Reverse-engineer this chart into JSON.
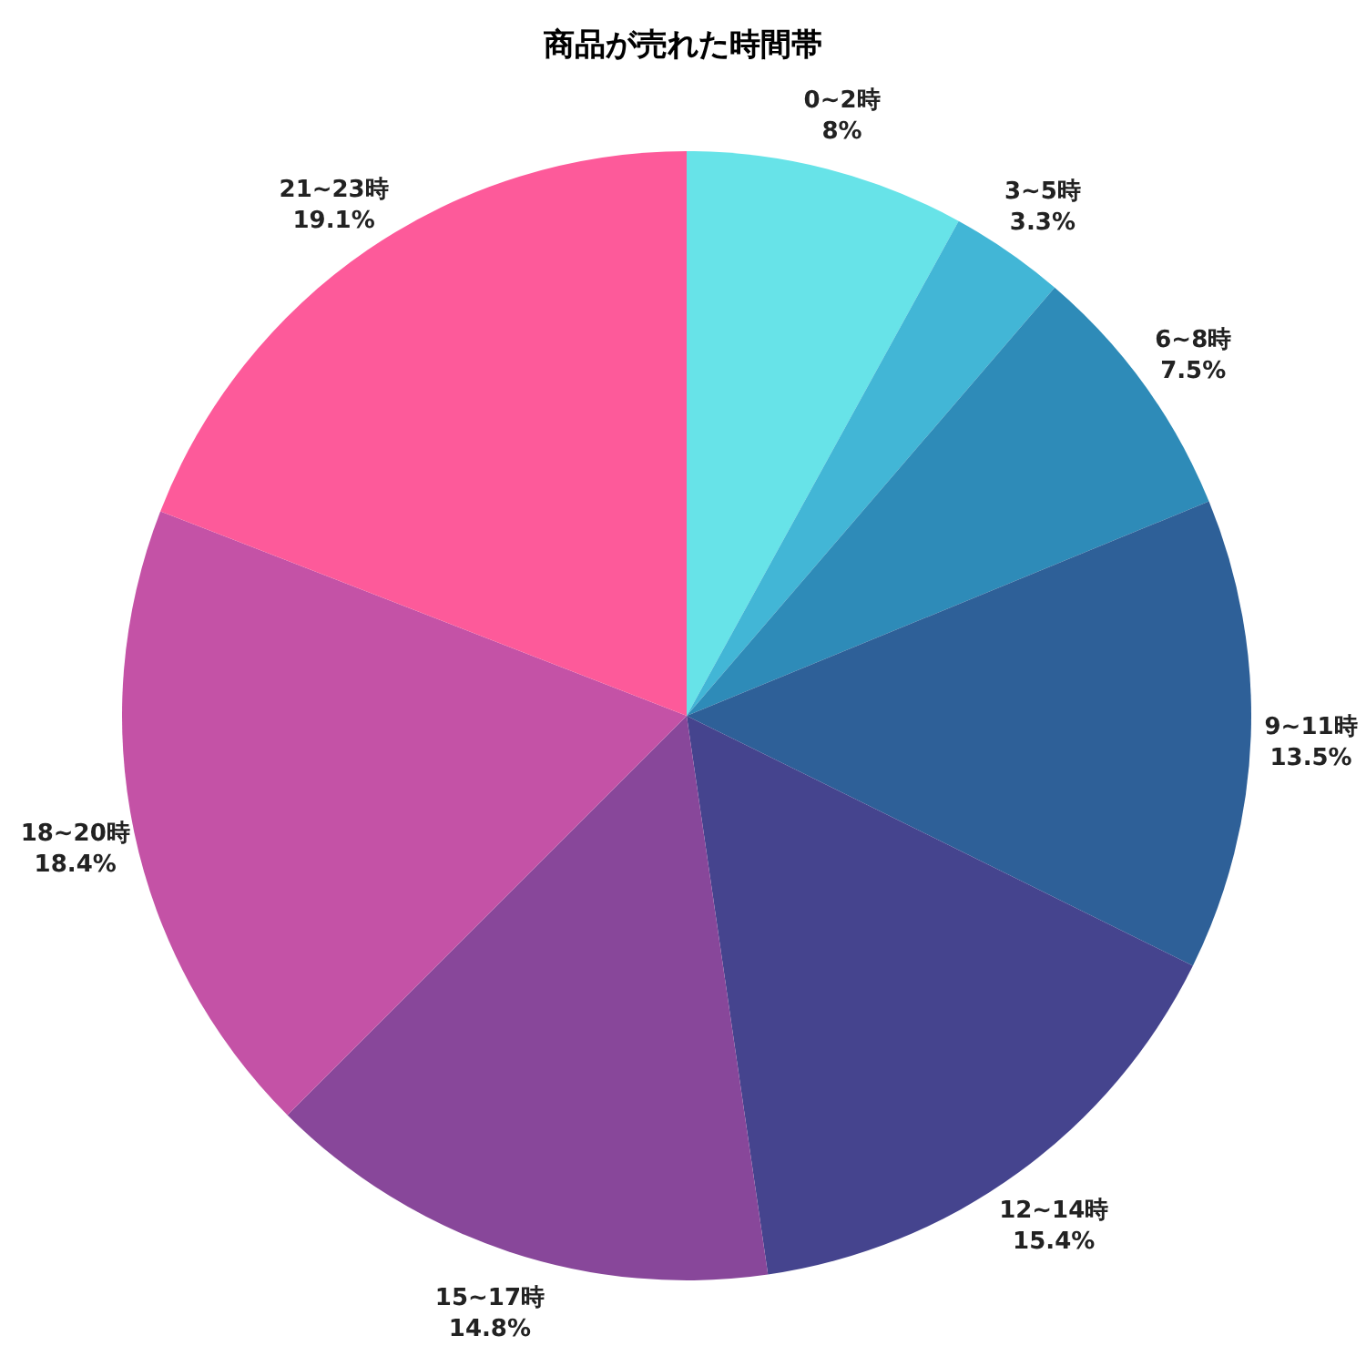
{
  "chart_data": {
    "type": "pie",
    "title": "商品が売れた時間帯",
    "categories": [
      "0~2時",
      "3~5時",
      "6~8時",
      "9~11時",
      "12~14時",
      "15~17時",
      "18~20時",
      "21~23時"
    ],
    "values": [
      8,
      3.3,
      7.5,
      13.5,
      15.4,
      14.8,
      18.4,
      19.1
    ],
    "colors": [
      "#67e3e8",
      "#42b6d6",
      "#2e8bb8",
      "#2e6098",
      "#45448e",
      "#88479a",
      "#c452a6",
      "#fd5a9a"
    ],
    "value_labels": [
      "8%",
      "3.3%",
      "7.5%",
      "13.5%",
      "15.4%",
      "14.8%",
      "18.4%",
      "19.1%"
    ]
  }
}
